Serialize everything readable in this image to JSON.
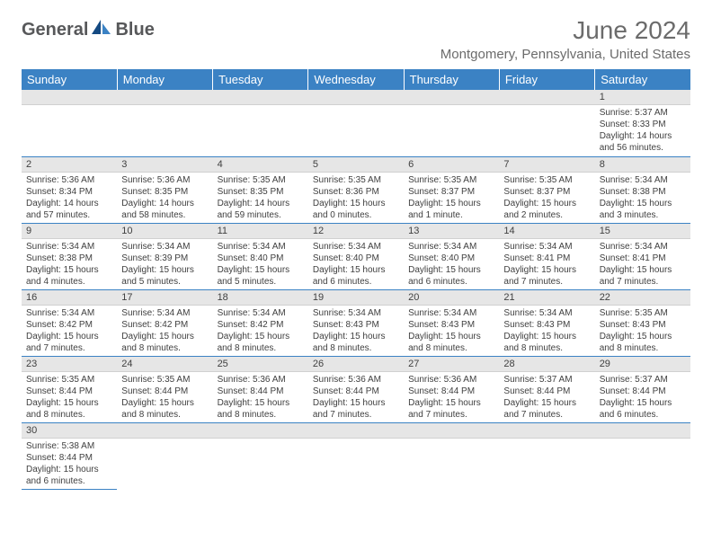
{
  "brand": {
    "name_left": "General",
    "name_right": "Blue"
  },
  "title": "June 2024",
  "location": "Montgomery, Pennsylvania, United States",
  "colors": {
    "header_blue": "#3b82c4",
    "daybar_grey": "#e6e6e6",
    "text_grey": "#6b6b6b",
    "body_text": "#404040"
  },
  "day_headers": [
    "Sunday",
    "Monday",
    "Tuesday",
    "Wednesday",
    "Thursday",
    "Friday",
    "Saturday"
  ],
  "weeks": [
    [
      {
        "empty": true
      },
      {
        "empty": true
      },
      {
        "empty": true
      },
      {
        "empty": true
      },
      {
        "empty": true
      },
      {
        "empty": true
      },
      {
        "n": "1",
        "sunrise": "Sunrise: 5:37 AM",
        "sunset": "Sunset: 8:33 PM",
        "daylight": "Daylight: 14 hours and 56 minutes."
      }
    ],
    [
      {
        "n": "2",
        "sunrise": "Sunrise: 5:36 AM",
        "sunset": "Sunset: 8:34 PM",
        "daylight": "Daylight: 14 hours and 57 minutes."
      },
      {
        "n": "3",
        "sunrise": "Sunrise: 5:36 AM",
        "sunset": "Sunset: 8:35 PM",
        "daylight": "Daylight: 14 hours and 58 minutes."
      },
      {
        "n": "4",
        "sunrise": "Sunrise: 5:35 AM",
        "sunset": "Sunset: 8:35 PM",
        "daylight": "Daylight: 14 hours and 59 minutes."
      },
      {
        "n": "5",
        "sunrise": "Sunrise: 5:35 AM",
        "sunset": "Sunset: 8:36 PM",
        "daylight": "Daylight: 15 hours and 0 minutes."
      },
      {
        "n": "6",
        "sunrise": "Sunrise: 5:35 AM",
        "sunset": "Sunset: 8:37 PM",
        "daylight": "Daylight: 15 hours and 1 minute."
      },
      {
        "n": "7",
        "sunrise": "Sunrise: 5:35 AM",
        "sunset": "Sunset: 8:37 PM",
        "daylight": "Daylight: 15 hours and 2 minutes."
      },
      {
        "n": "8",
        "sunrise": "Sunrise: 5:34 AM",
        "sunset": "Sunset: 8:38 PM",
        "daylight": "Daylight: 15 hours and 3 minutes."
      }
    ],
    [
      {
        "n": "9",
        "sunrise": "Sunrise: 5:34 AM",
        "sunset": "Sunset: 8:38 PM",
        "daylight": "Daylight: 15 hours and 4 minutes."
      },
      {
        "n": "10",
        "sunrise": "Sunrise: 5:34 AM",
        "sunset": "Sunset: 8:39 PM",
        "daylight": "Daylight: 15 hours and 5 minutes."
      },
      {
        "n": "11",
        "sunrise": "Sunrise: 5:34 AM",
        "sunset": "Sunset: 8:40 PM",
        "daylight": "Daylight: 15 hours and 5 minutes."
      },
      {
        "n": "12",
        "sunrise": "Sunrise: 5:34 AM",
        "sunset": "Sunset: 8:40 PM",
        "daylight": "Daylight: 15 hours and 6 minutes."
      },
      {
        "n": "13",
        "sunrise": "Sunrise: 5:34 AM",
        "sunset": "Sunset: 8:40 PM",
        "daylight": "Daylight: 15 hours and 6 minutes."
      },
      {
        "n": "14",
        "sunrise": "Sunrise: 5:34 AM",
        "sunset": "Sunset: 8:41 PM",
        "daylight": "Daylight: 15 hours and 7 minutes."
      },
      {
        "n": "15",
        "sunrise": "Sunrise: 5:34 AM",
        "sunset": "Sunset: 8:41 PM",
        "daylight": "Daylight: 15 hours and 7 minutes."
      }
    ],
    [
      {
        "n": "16",
        "sunrise": "Sunrise: 5:34 AM",
        "sunset": "Sunset: 8:42 PM",
        "daylight": "Daylight: 15 hours and 7 minutes."
      },
      {
        "n": "17",
        "sunrise": "Sunrise: 5:34 AM",
        "sunset": "Sunset: 8:42 PM",
        "daylight": "Daylight: 15 hours and 8 minutes."
      },
      {
        "n": "18",
        "sunrise": "Sunrise: 5:34 AM",
        "sunset": "Sunset: 8:42 PM",
        "daylight": "Daylight: 15 hours and 8 minutes."
      },
      {
        "n": "19",
        "sunrise": "Sunrise: 5:34 AM",
        "sunset": "Sunset: 8:43 PM",
        "daylight": "Daylight: 15 hours and 8 minutes."
      },
      {
        "n": "20",
        "sunrise": "Sunrise: 5:34 AM",
        "sunset": "Sunset: 8:43 PM",
        "daylight": "Daylight: 15 hours and 8 minutes."
      },
      {
        "n": "21",
        "sunrise": "Sunrise: 5:34 AM",
        "sunset": "Sunset: 8:43 PM",
        "daylight": "Daylight: 15 hours and 8 minutes."
      },
      {
        "n": "22",
        "sunrise": "Sunrise: 5:35 AM",
        "sunset": "Sunset: 8:43 PM",
        "daylight": "Daylight: 15 hours and 8 minutes."
      }
    ],
    [
      {
        "n": "23",
        "sunrise": "Sunrise: 5:35 AM",
        "sunset": "Sunset: 8:44 PM",
        "daylight": "Daylight: 15 hours and 8 minutes."
      },
      {
        "n": "24",
        "sunrise": "Sunrise: 5:35 AM",
        "sunset": "Sunset: 8:44 PM",
        "daylight": "Daylight: 15 hours and 8 minutes."
      },
      {
        "n": "25",
        "sunrise": "Sunrise: 5:36 AM",
        "sunset": "Sunset: 8:44 PM",
        "daylight": "Daylight: 15 hours and 8 minutes."
      },
      {
        "n": "26",
        "sunrise": "Sunrise: 5:36 AM",
        "sunset": "Sunset: 8:44 PM",
        "daylight": "Daylight: 15 hours and 7 minutes."
      },
      {
        "n": "27",
        "sunrise": "Sunrise: 5:36 AM",
        "sunset": "Sunset: 8:44 PM",
        "daylight": "Daylight: 15 hours and 7 minutes."
      },
      {
        "n": "28",
        "sunrise": "Sunrise: 5:37 AM",
        "sunset": "Sunset: 8:44 PM",
        "daylight": "Daylight: 15 hours and 7 minutes."
      },
      {
        "n": "29",
        "sunrise": "Sunrise: 5:37 AM",
        "sunset": "Sunset: 8:44 PM",
        "daylight": "Daylight: 15 hours and 6 minutes."
      }
    ],
    [
      {
        "n": "30",
        "sunrise": "Sunrise: 5:38 AM",
        "sunset": "Sunset: 8:44 PM",
        "daylight": "Daylight: 15 hours and 6 minutes."
      },
      {
        "empty": true
      },
      {
        "empty": true
      },
      {
        "empty": true
      },
      {
        "empty": true
      },
      {
        "empty": true
      },
      {
        "empty": true
      }
    ]
  ]
}
